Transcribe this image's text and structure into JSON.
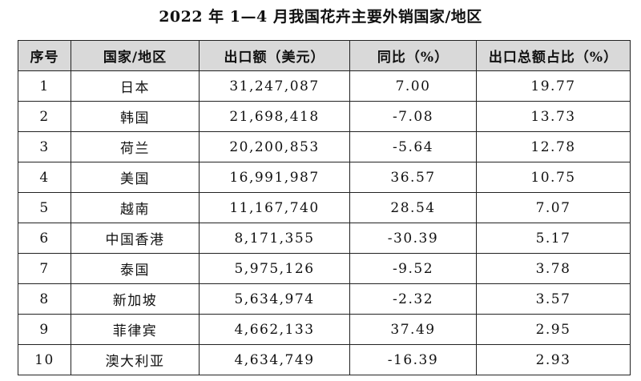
{
  "title": "2022 年 1—4 月我国花卉主要外销国家/地区",
  "table": {
    "headers": [
      "序号",
      "国家/地区",
      "出口额（美元）",
      "同比（%）",
      "出口总额占比（%）"
    ],
    "rows": [
      [
        "1",
        "日本",
        "31,247,087",
        "7.00",
        "19.77"
      ],
      [
        "2",
        "韩国",
        "21,698,418",
        "-7.08",
        "13.73"
      ],
      [
        "3",
        "荷兰",
        "20,200,853",
        "-5.64",
        "12.78"
      ],
      [
        "4",
        "美国",
        "16,991,987",
        "36.57",
        "10.75"
      ],
      [
        "5",
        "越南",
        "11,167,740",
        "28.54",
        "7.07"
      ],
      [
        "6",
        "中国香港",
        "8,171,355",
        "-30.39",
        "5.17"
      ],
      [
        "7",
        "泰国",
        "5,975,126",
        "-9.52",
        "3.78"
      ],
      [
        "8",
        "新加坡",
        "5,634,974",
        "-2.32",
        "3.57"
      ],
      [
        "9",
        "菲律宾",
        "4,662,133",
        "37.49",
        "2.95"
      ],
      [
        "10",
        "澳大利亚",
        "4,634,749",
        "-16.39",
        "2.93"
      ]
    ]
  },
  "colors": {
    "header_background": "#d9d9d9",
    "border": "#222222",
    "text": "#111111"
  }
}
